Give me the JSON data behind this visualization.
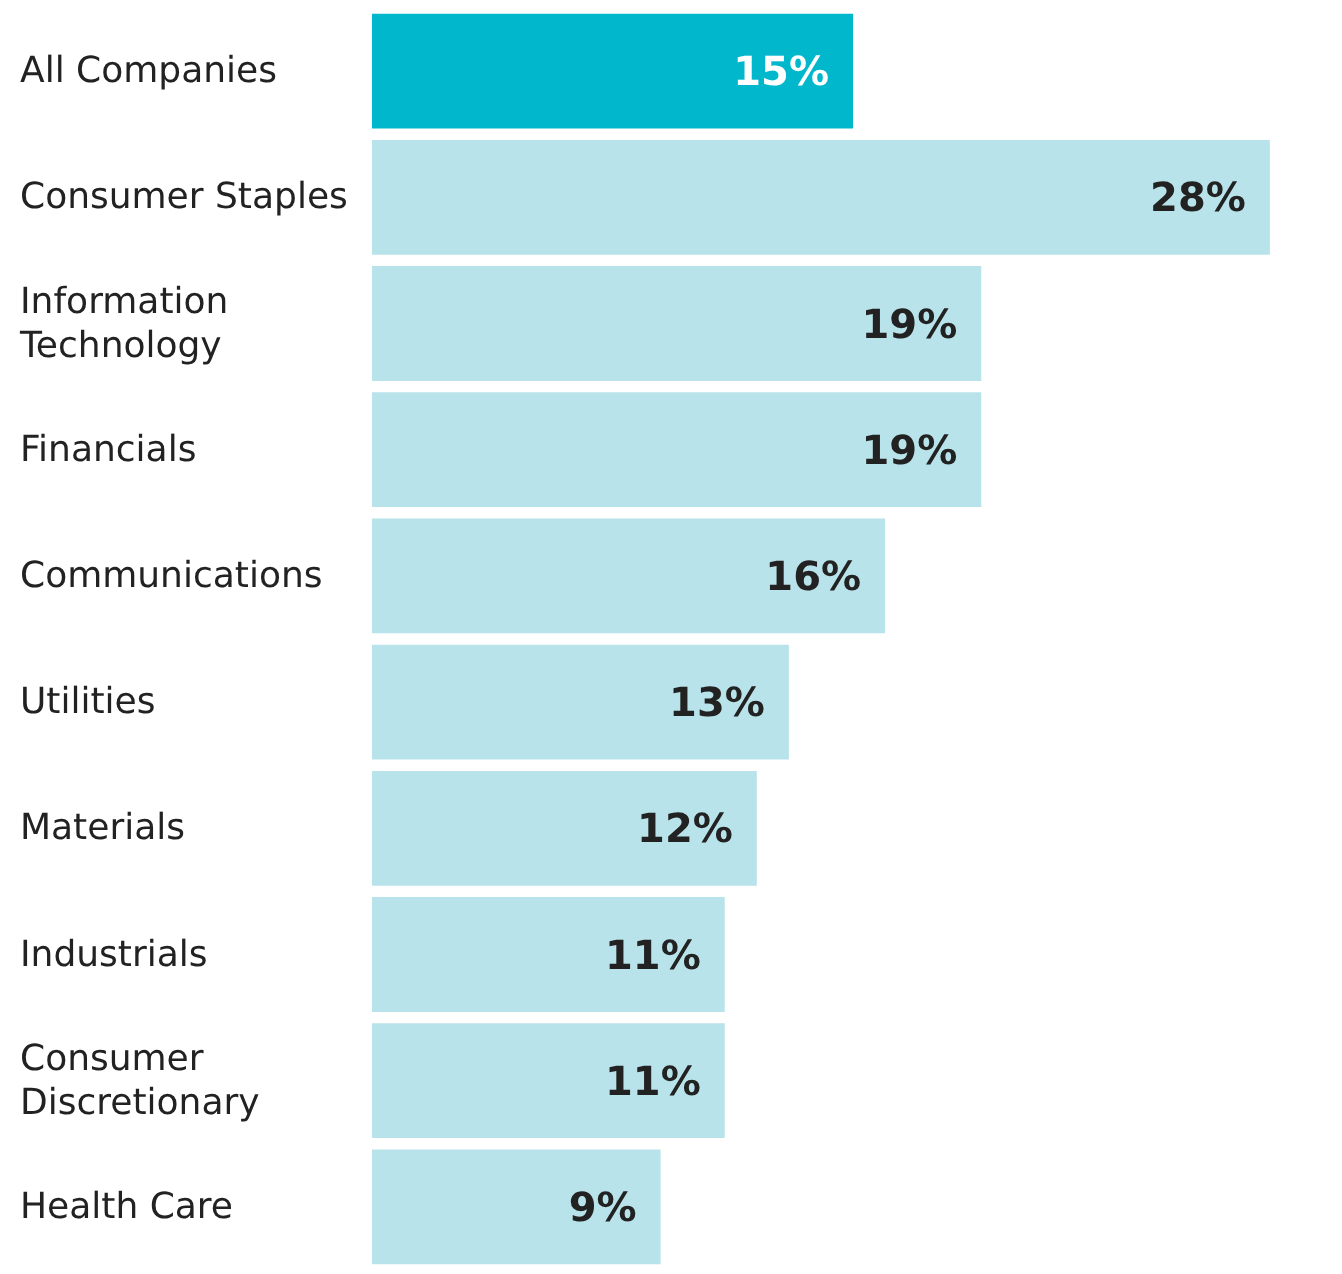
{
  "chart_data": {
    "type": "bar",
    "orientation": "horizontal",
    "categories": [
      "All Companies",
      "Consumer Staples",
      "Information Technology",
      "Financials",
      "Communications",
      "Utilities",
      "Materials",
      "Industrials",
      "Consumer Discretionary",
      "Health Care"
    ],
    "values": [
      15,
      28,
      19,
      19,
      16,
      13,
      12,
      11,
      11,
      9
    ],
    "colors": [
      "#00b7cc",
      "#b9e3ea",
      "#b9e3ea",
      "#b9e3ea",
      "#b9e3ea",
      "#b9e3ea",
      "#b9e3ea",
      "#b9e3ea",
      "#b9e3ea",
      "#b9e3ea"
    ],
    "value_labels": [
      "15%",
      "28%",
      "19%",
      "19%",
      "16%",
      "13%",
      "12%",
      "11%",
      "11%",
      "9%"
    ]
  }
}
